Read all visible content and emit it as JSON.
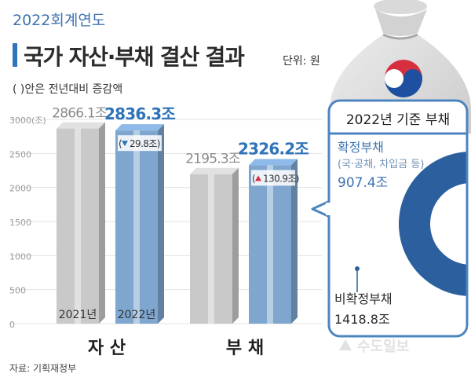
{
  "header": {
    "year_label": "2022회계연도",
    "title": "국가 자산·부채 결산 결과",
    "unit": "단위: 원",
    "note": "( )안은 전년대비 증감액"
  },
  "source": "자료: 기획재정부",
  "watermark": "수도일보",
  "colors": {
    "gray_bar": "#c9c9c9",
    "blue_bar": "#7ea6cf",
    "accent_blue": "#2f73b8",
    "panel_blue": "#4d85c0",
    "donut_light": "#6f9ac9",
    "donut_dark": "#2b5f9e"
  },
  "chart_data": [
    {
      "type": "bar",
      "categories": [
        "자 산",
        "부 채"
      ],
      "year_labels": [
        "2021년",
        "2022년"
      ],
      "series": [
        {
          "name": "2021년",
          "values": [
            2866.1,
            2195.3
          ],
          "labels": [
            "2866.1조",
            "2195.3조"
          ]
        },
        {
          "name": "2022년",
          "values": [
            2836.3,
            2326.2
          ],
          "labels": [
            "2836.3조",
            "2326.2조"
          ]
        }
      ],
      "changes": [
        {
          "category": "자 산",
          "direction": "down",
          "value": 29.8,
          "label": "29.8조"
        },
        {
          "category": "부 채",
          "direction": "up",
          "value": 130.9,
          "label": "130.9조"
        }
      ],
      "yticks": [
        "3000(조)",
        "2500",
        "2000",
        "1500",
        "1000",
        "500",
        "0"
      ],
      "ylim": [
        0,
        3000
      ]
    },
    {
      "type": "pie",
      "title": "2022년 기준 부채",
      "slices": [
        {
          "name": "확정부채",
          "sub": "(국·공채, 차입금 등)",
          "value": 907.4,
          "label": "907.4조"
        },
        {
          "name": "비확정부채",
          "value": 1418.8,
          "label": "1418.8조"
        }
      ]
    }
  ]
}
